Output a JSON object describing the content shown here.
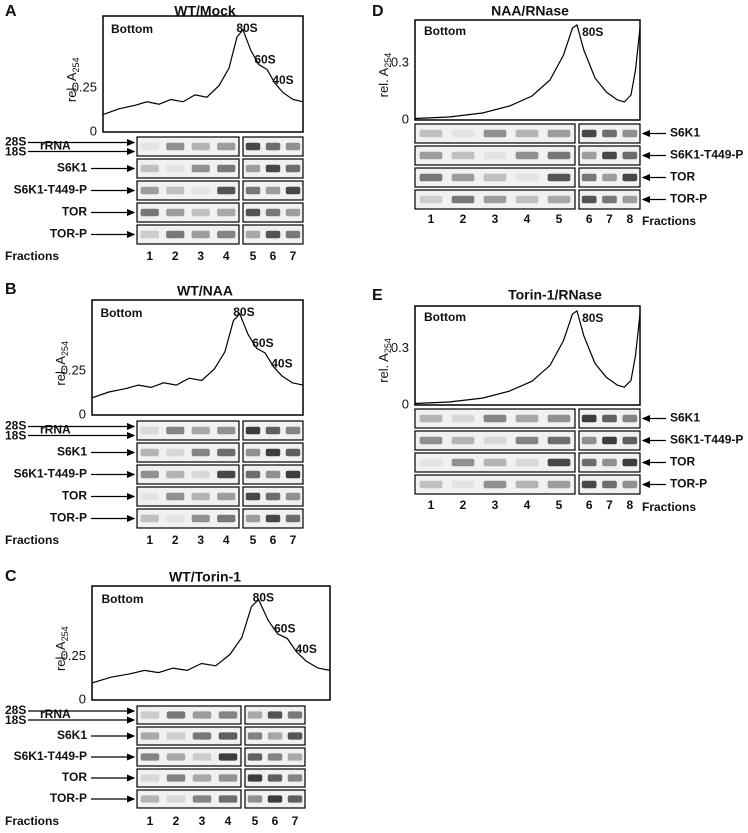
{
  "panels": [
    {
      "letter": "A",
      "title": "WT/Mock",
      "y_label": "rel. A",
      "y_label_sub": "254",
      "yticks": [
        "0.25",
        "0"
      ],
      "peaks": [
        "Bottom",
        "80S",
        "60S",
        "40S"
      ],
      "rrna_labels": [
        "28S",
        "18S"
      ],
      "rows": [
        "rRNA",
        "S6K1",
        "S6K1-T449-P",
        "TOR",
        "TOR-P"
      ],
      "fractions_label": "Fractions",
      "fractions": [
        "1",
        "2",
        "3",
        "4",
        "5",
        "6",
        "7"
      ]
    },
    {
      "letter": "B",
      "title": "WT/NAA",
      "y_label": "rel. A",
      "y_label_sub": "254",
      "yticks": [
        "0.25",
        "0"
      ],
      "peaks": [
        "Bottom",
        "80S",
        "60S",
        "40S"
      ],
      "rrna_labels": [
        "28S",
        "18S"
      ],
      "rows": [
        "rRNA",
        "S6K1",
        "S6K1-T449-P",
        "TOR",
        "TOR-P"
      ],
      "fractions_label": "Fractions",
      "fractions": [
        "1",
        "2",
        "3",
        "4",
        "5",
        "6",
        "7"
      ]
    },
    {
      "letter": "C",
      "title": "WT/Torin-1",
      "y_label": "rel. A",
      "y_label_sub": "254",
      "yticks": [
        "0.25",
        "0"
      ],
      "peaks": [
        "Bottom",
        "80S",
        "60S",
        "40S"
      ],
      "rrna_labels": [
        "28S",
        "18S"
      ],
      "rows": [
        "rRNA",
        "S6K1",
        "S6K1-T449-P",
        "TOR",
        "TOR-P"
      ],
      "fractions_label": "Fractions",
      "fractions": [
        "1",
        "2",
        "3",
        "4",
        "5",
        "6",
        "7"
      ]
    },
    {
      "letter": "D",
      "title": "NAA/RNase",
      "y_label": "rel. A",
      "y_label_sub": "254",
      "yticks": [
        "0.3",
        "0"
      ],
      "peaks": [
        "Bottom",
        "80S"
      ],
      "rows": [
        "S6K1",
        "S6K1-T449-P",
        "TOR",
        "TOR-P"
      ],
      "fractions_label": "Fractions",
      "fractions": [
        "1",
        "2",
        "3",
        "4",
        "5",
        "6",
        "7",
        "8"
      ]
    },
    {
      "letter": "E",
      "title": "Torin-1/RNase",
      "y_label": "rel. A",
      "y_label_sub": "254",
      "yticks": [
        "0.3",
        "0"
      ],
      "peaks": [
        "Bottom",
        "80S"
      ],
      "rows": [
        "S6K1",
        "S6K1-T449-P",
        "TOR",
        "TOR-P"
      ],
      "fractions_label": "Fractions",
      "fractions": [
        "1",
        "2",
        "3",
        "4",
        "5",
        "6",
        "7",
        "8"
      ]
    }
  ]
}
